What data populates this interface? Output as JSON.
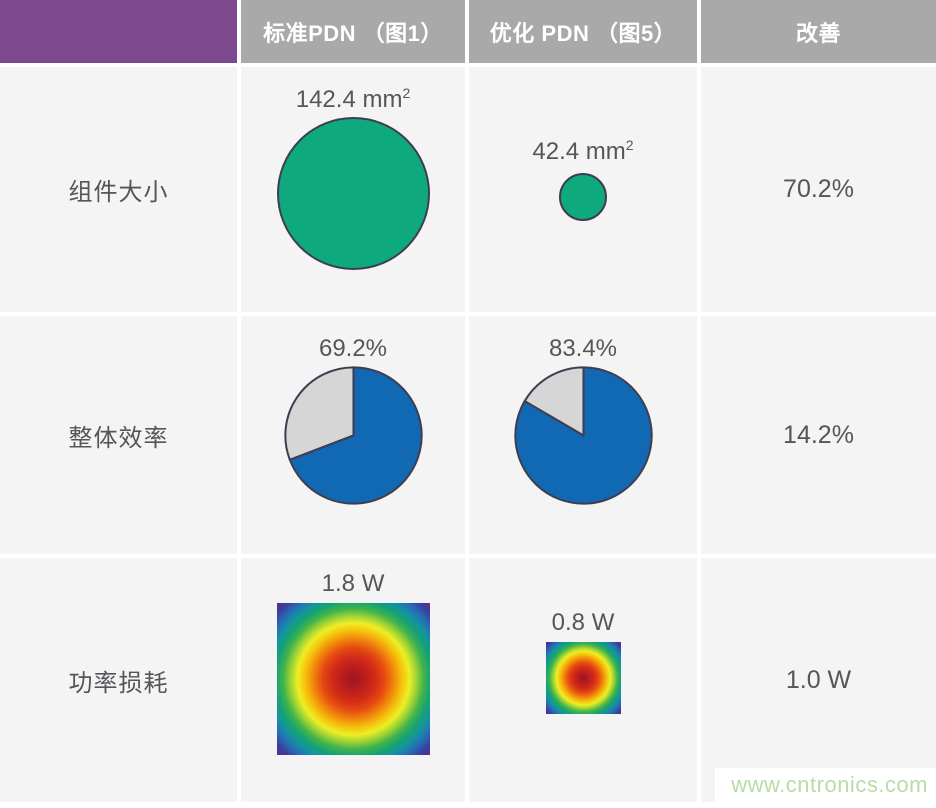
{
  "header": {
    "blank": "",
    "standard": "标准PDN （图1）",
    "optimized": "优化 PDN （图5）",
    "improvement": "改善"
  },
  "rows": [
    {
      "label": "组件大小",
      "standard": {
        "value": "142.4 mm",
        "sup": "2"
      },
      "optimized": {
        "value": "42.4 mm",
        "sup": "2"
      },
      "improvement": "70.2%"
    },
    {
      "label": "整体效率",
      "standard": {
        "value": "69.2%",
        "pct": 69.2
      },
      "optimized": {
        "value": "83.4%",
        "pct": 83.4
      },
      "improvement": "14.2%"
    },
    {
      "label": "功率损耗",
      "standard": {
        "value": "1.8 W"
      },
      "optimized": {
        "value": "0.8 W"
      },
      "improvement": "1.0 W"
    }
  ],
  "watermark": "www.cntronics.com",
  "colors": {
    "header_purple": "#7C498E",
    "header_gray": "#A9A9AA",
    "cell_bg": "#F4F4F4",
    "text_gray": "#55555A",
    "circle_green": "#0FA97E",
    "outline": "#3E3E50",
    "pie_fill": "#1169B4",
    "pie_remainder": "#D6D6D6",
    "heatmap_center": "#9E1420",
    "heatmap_corner": "#5D2B8B",
    "watermark_green": "#B7DDA6"
  },
  "chart_data": [
    {
      "type": "table",
      "columns": [
        "",
        "标准PDN （图1）",
        "优化 PDN （图5）",
        "改善"
      ],
      "rows": [
        [
          "组件大小",
          "142.4 mm²",
          "42.4 mm²",
          "70.2%"
        ],
        [
          "整体效率",
          "69.2%",
          "83.4%",
          "14.2%"
        ],
        [
          "功率损耗",
          "1.8 W",
          "0.8 W",
          "1.0 W"
        ]
      ]
    },
    {
      "type": "pie",
      "title": "整体效率 — 标准PDN （图1）",
      "values": [
        69.2,
        30.8
      ],
      "labels": [
        "69.2%",
        ""
      ]
    },
    {
      "type": "pie",
      "title": "整体效率 — 优化 PDN （图5）",
      "values": [
        83.4,
        16.6
      ],
      "labels": [
        "83.4%",
        ""
      ]
    }
  ]
}
